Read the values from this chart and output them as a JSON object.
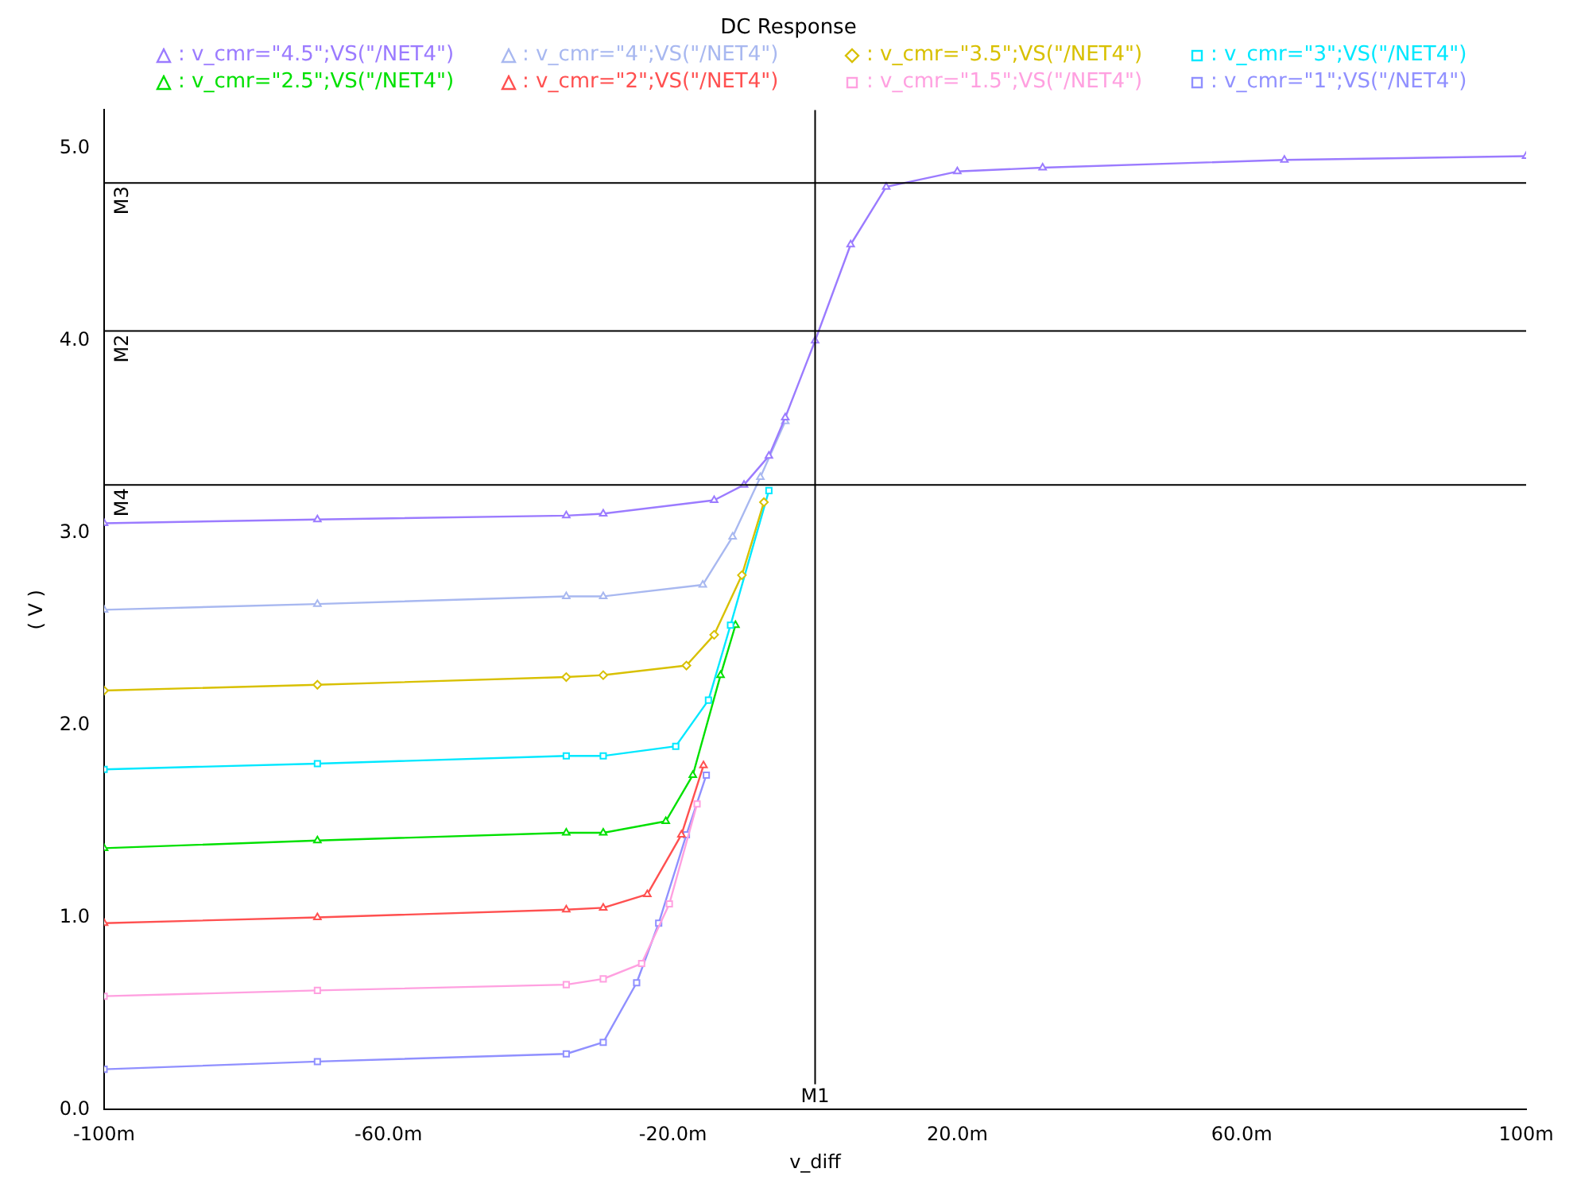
{
  "chart_data": {
    "type": "line",
    "title": "DC Response",
    "xlabel": "v_diff",
    "ylabel": "( V )",
    "xlim": [
      -100,
      100
    ],
    "xticks": [
      {
        "value": -100,
        "label": "-100m"
      },
      {
        "value": -60,
        "label": "-60.0m"
      },
      {
        "value": -20,
        "label": "-20.0m"
      },
      {
        "value": 20,
        "label": "20.0m"
      },
      {
        "value": 60,
        "label": "60.0m"
      },
      {
        "value": 100,
        "label": "100m"
      }
    ],
    "ylim": [
      0,
      5.2
    ],
    "yticks": [
      {
        "value": 0,
        "label": "0.0"
      },
      {
        "value": 1,
        "label": "1.0"
      },
      {
        "value": 2,
        "label": "2.0"
      },
      {
        "value": 3,
        "label": "3.0"
      },
      {
        "value": 4,
        "label": "4.0"
      },
      {
        "value": 5,
        "label": "5.0"
      }
    ],
    "grid": false,
    "legend": "top",
    "line_style": "solid",
    "ref_lines": [
      {
        "axis": "y",
        "value": 4.82,
        "label": "M3",
        "color": "#000000"
      },
      {
        "axis": "y",
        "value": 4.05,
        "label": "M2",
        "color": "#000000"
      },
      {
        "axis": "y",
        "value": 3.25,
        "label": "M4",
        "color": "#000000"
      },
      {
        "axis": "x",
        "value": 0,
        "label": "M1",
        "color": "#000000"
      }
    ],
    "series": [
      {
        "name": ": v_cmr=\"4.5\";VS(\"/NET4\")",
        "color": "#9b7bff",
        "marker": "triangle",
        "x": [
          -100,
          -70,
          -35,
          -29.8,
          -14.2,
          -10,
          -6.5,
          -4.2,
          0,
          5,
          10,
          20,
          32,
          66,
          100
        ],
        "values": [
          3.05,
          3.07,
          3.09,
          3.1,
          3.17,
          3.25,
          3.4,
          3.6,
          4.0,
          4.5,
          4.8,
          4.88,
          4.9,
          4.94,
          4.96
        ]
      },
      {
        "name": ": v_cmr=\"4\";VS(\"/NET4\")",
        "color": "#a8b8f0",
        "marker": "triangle",
        "x": [
          -100,
          -70,
          -35,
          -29.8,
          -15.8,
          -11.6,
          -7.7,
          -4.2
        ],
        "values": [
          2.6,
          2.63,
          2.67,
          2.67,
          2.73,
          2.98,
          3.29,
          3.58
        ]
      },
      {
        "name": ": v_cmr=\"3.5\";VS(\"/NET4\")",
        "color": "#d8c000",
        "marker": "diamond",
        "x": [
          -100,
          -70,
          -35,
          -29.8,
          -18.1,
          -14.2,
          -10.3,
          -7.2
        ],
        "values": [
          2.18,
          2.21,
          2.25,
          2.26,
          2.31,
          2.47,
          2.78,
          3.16
        ]
      },
      {
        "name": ": v_cmr=\"3\";VS(\"/NET4\")",
        "color": "#00e8ff",
        "marker": "square",
        "x": [
          -100,
          -70,
          -35,
          -29.8,
          -19.6,
          -15,
          -11.9,
          -6.5
        ],
        "values": [
          1.77,
          1.8,
          1.84,
          1.84,
          1.89,
          2.13,
          2.52,
          3.22
        ]
      },
      {
        "name": ": v_cmr=\"2.5\";VS(\"/NET4\")",
        "color": "#00e000",
        "marker": "triangle",
        "x": [
          -100,
          -70,
          -35,
          -29.8,
          -21,
          -17.2,
          -13.3,
          -11.2
        ],
        "values": [
          1.36,
          1.4,
          1.44,
          1.44,
          1.5,
          1.74,
          2.26,
          2.52
        ]
      },
      {
        "name": ": v_cmr=\"2\";VS(\"/NET4\")",
        "color": "#ff5050",
        "marker": "triangle",
        "x": [
          -100,
          -70,
          -35,
          -29.8,
          -23.6,
          -18.8,
          -15.7
        ],
        "values": [
          0.97,
          1.0,
          1.04,
          1.05,
          1.12,
          1.43,
          1.79
        ]
      },
      {
        "name": ": v_cmr=\"1.5\";VS(\"/NET4\")",
        "color": "#ffa0e0",
        "marker": "square",
        "x": [
          -100,
          -70,
          -35,
          -29.8,
          -24.4,
          -20.5,
          -16.6
        ],
        "values": [
          0.59,
          0.62,
          0.65,
          0.68,
          0.76,
          1.07,
          1.59
        ]
      },
      {
        "name": ": v_cmr=\"1\";VS(\"/NET4\")",
        "color": "#9090ff",
        "marker": "square",
        "x": [
          -100,
          -70,
          -35,
          -29.8,
          -25.1,
          -22,
          -18.1,
          -15.3
        ],
        "values": [
          0.21,
          0.25,
          0.29,
          0.35,
          0.66,
          0.97,
          1.43,
          1.74
        ]
      }
    ]
  }
}
